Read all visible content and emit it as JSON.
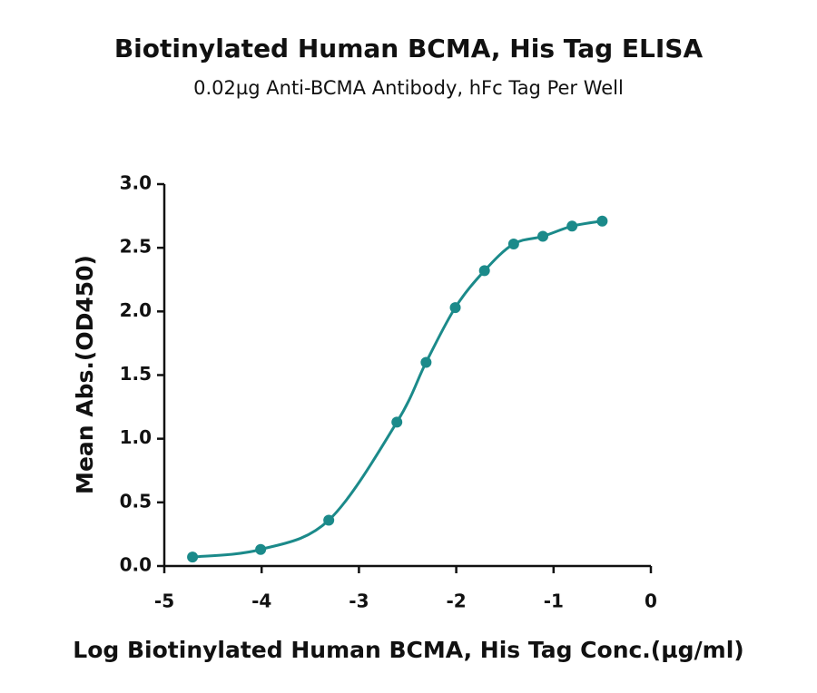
{
  "chart_data": {
    "type": "scatter",
    "title": "Biotinylated Human BCMA, His Tag ELISA",
    "subtitle": "0.02µg Anti-BCMA Antibody, hFc Tag Per Well",
    "x_label": "Log Biotinylated Human BCMA, His Tag Conc.(µg/ml)",
    "y_label": "Mean Abs.(OD450)",
    "color": "#1b8a8a",
    "x": [
      -4.71,
      -4.01,
      -3.31,
      -2.61,
      -2.31,
      -2.01,
      -1.71,
      -1.41,
      -1.11,
      -0.81,
      -0.5
    ],
    "values": [
      0.07,
      0.13,
      0.36,
      1.13,
      1.6,
      2.03,
      2.32,
      2.53,
      2.59,
      2.67,
      2.71
    ],
    "xlim": [
      -5,
      0
    ],
    "xticks": [
      -5,
      -4,
      -3,
      -2,
      -1,
      0
    ],
    "ylim": [
      0,
      3
    ],
    "yticks": [
      {
        "value": 0,
        "label": "0.0"
      },
      0.5,
      {
        "value": 1,
        "label": "1.0"
      },
      1.5,
      {
        "value": 2,
        "label": "2.0"
      },
      2.5,
      {
        "value": 3,
        "label": "3.0"
      }
    ],
    "grid": false
  }
}
